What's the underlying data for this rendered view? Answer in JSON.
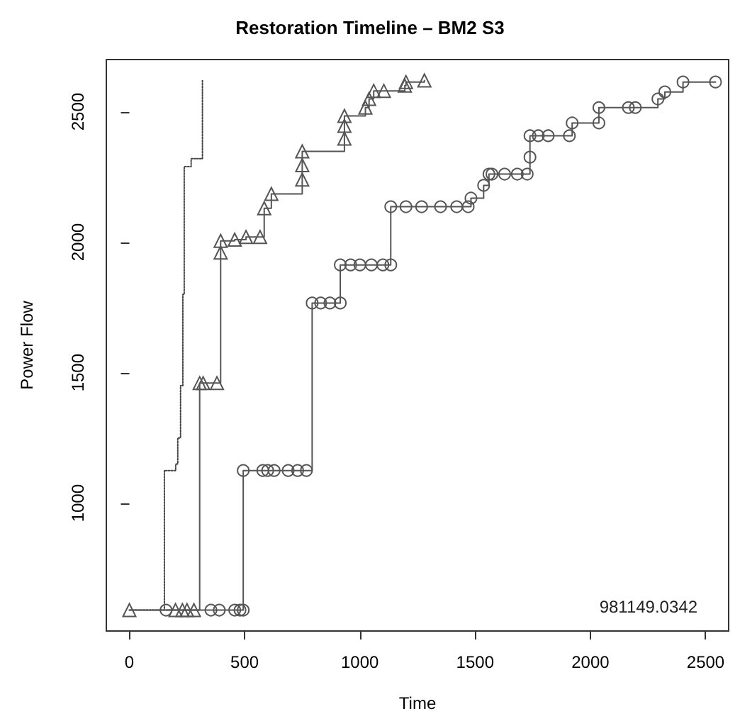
{
  "chart_data": {
    "type": "step",
    "title": "Restoration Timeline – BM2 S3",
    "xlabel": "Time",
    "ylabel": "Power Flow",
    "xlim": [
      -100,
      2600
    ],
    "xticks": [
      0,
      500,
      1000,
      1500,
      2000,
      2500
    ],
    "ylim": [
      510,
      2700
    ],
    "yticks": [
      1000,
      1500,
      2000,
      2500
    ],
    "grid": false,
    "annotations": [
      "981149.0342"
    ],
    "series": [
      {
        "color": "#444444",
        "line_style": "dotted",
        "marker": "none",
        "x": [
          0,
          152,
          201,
          210,
          222,
          232,
          238,
          268,
          317
        ],
        "values": [
          590,
          1125,
          1150,
          1250,
          1450,
          1800,
          2290,
          2320,
          2620
        ]
      },
      {
        "color": "#555555",
        "line_style": "solid",
        "marker": "triangle",
        "x": [
          0,
          200,
          230,
          250,
          280,
          305,
          320,
          380,
          396,
          396,
          457,
          506,
          567,
          585,
          616,
          750,
          750,
          750,
          933,
          933,
          933,
          1024,
          1040,
          1060,
          1104,
          1195,
          1200,
          1280
        ],
        "values": [
          590,
          590,
          590,
          590,
          590,
          1460,
          1460,
          1460,
          1960,
          2005,
          2010,
          2020,
          2020,
          2130,
          2185,
          2240,
          2295,
          2348,
          2397,
          2446,
          2484,
          2516,
          2549,
          2580,
          2580,
          2600,
          2614,
          2620
        ]
      },
      {
        "color": "#555555",
        "line_style": "solid",
        "marker": "circle",
        "x": [
          159,
          354,
          390,
          457,
          480,
          494,
          494,
          579,
          600,
          628,
          689,
          730,
          768,
          793,
          830,
          870,
          915,
          915,
          960,
          1000,
          1050,
          1100,
          1134,
          1134,
          1200,
          1268,
          1350,
          1420,
          1470,
          1482,
          1537,
          1560,
          1573,
          1628,
          1683,
          1726,
          1738,
          1738,
          1774,
          1817,
          1909,
          1921,
          2037,
          2037,
          2165,
          2195,
          2293,
          2323,
          2402,
          2543
        ],
        "values": [
          590,
          590,
          590,
          590,
          590,
          590,
          1125,
          1125,
          1125,
          1125,
          1125,
          1125,
          1125,
          1767,
          1767,
          1767,
          1767,
          1913,
          1913,
          1913,
          1913,
          1913,
          1913,
          2136,
          2136,
          2136,
          2136,
          2136,
          2136,
          2169,
          2218,
          2261,
          2261,
          2261,
          2261,
          2261,
          2326,
          2408,
          2408,
          2408,
          2408,
          2457,
          2457,
          2516,
          2516,
          2516,
          2549,
          2576,
          2614,
          2614
        ]
      }
    ]
  }
}
